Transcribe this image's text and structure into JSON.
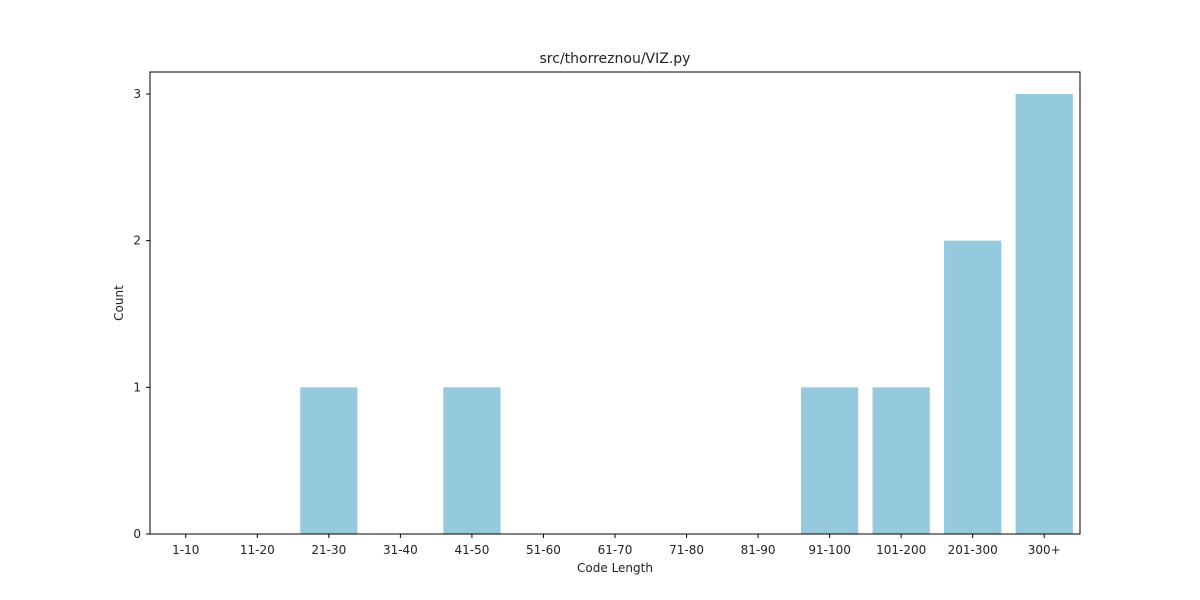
{
  "chart_data": {
    "type": "bar",
    "title": "src/thorreznou/VIZ.py",
    "xlabel": "Code Length",
    "ylabel": "Count",
    "categories": [
      "1-10",
      "11-20",
      "21-30",
      "31-40",
      "41-50",
      "51-60",
      "61-70",
      "71-80",
      "81-90",
      "91-100",
      "101-200",
      "201-300",
      "300+"
    ],
    "values": [
      0,
      0,
      1,
      0,
      1,
      0,
      0,
      0,
      0,
      1,
      1,
      2,
      3
    ],
    "yticks": [
      0,
      1,
      2,
      3
    ],
    "ylim": [
      0,
      3.15
    ],
    "bar_color": "#95c9de",
    "grid": false,
    "legend": "none"
  }
}
